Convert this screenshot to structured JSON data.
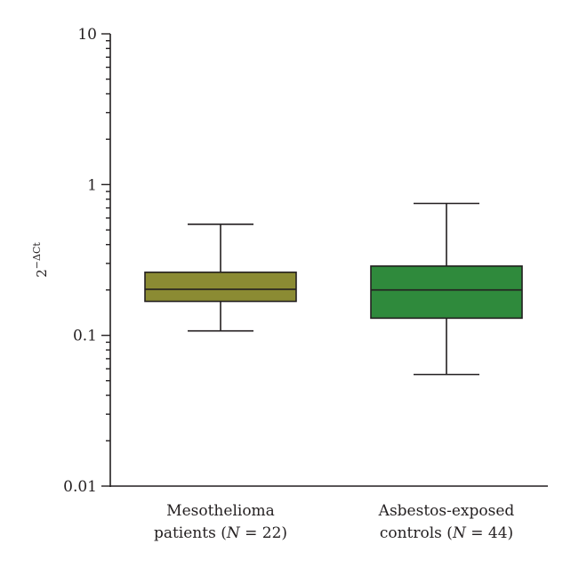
{
  "chart_data": {
    "type": "boxplot",
    "title": "",
    "ylabel": "2",
    "ylabel_sup": "−ΔCt",
    "yscale": "log",
    "ylim": [
      0.01,
      10
    ],
    "yticks": [
      "10",
      "1",
      "0.1",
      "0.01"
    ],
    "y_tick_values": [
      10,
      1,
      0.1,
      0.01
    ],
    "grid": false,
    "categories": [
      {
        "line1": "Mesothelioma",
        "line2_pre": "patients (",
        "line2_italic": "N",
        "line2_post": " = 22)"
      },
      {
        "line1": "Asbestos-exposed",
        "line2_pre": "controls (",
        "line2_italic": "N",
        "line2_post": " = 44)"
      }
    ],
    "boxes": [
      {
        "min": 0.107,
        "q1": 0.168,
        "median": 0.202,
        "q3": 0.262,
        "max": 0.545,
        "color": "#8b8b33"
      },
      {
        "min": 0.055,
        "q1": 0.13,
        "median": 0.2,
        "q3": 0.288,
        "max": 0.75,
        "color": "#2f8a3c"
      }
    ]
  }
}
